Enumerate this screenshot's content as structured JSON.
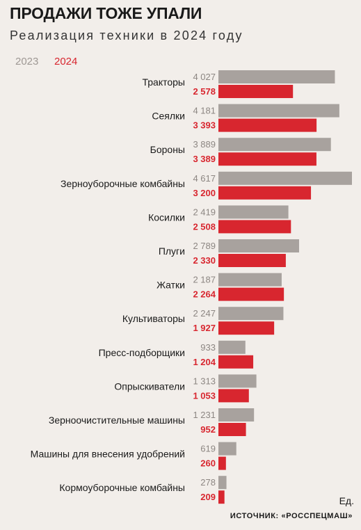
{
  "chart_data": {
    "type": "bar",
    "orientation": "horizontal",
    "title": "ПРОДАЖИ ТОЖЕ УПАЛИ",
    "subtitle": "Реализация техники в 2024 году",
    "unit_label": "Ед.",
    "source": "ИСТОЧНИК: «РОССПЕЦМАШ»",
    "categories": [
      "Тракторы",
      "Сеялки",
      "Бороны",
      "Зерноуборочные комбайны",
      "Косилки",
      "Плуги",
      "Жатки",
      "Культиваторы",
      "Пресс-подборщики",
      "Опрыскиватели",
      "Зерноочистительные машины",
      "Машины для внесения удобрений",
      "Кормоуборочные комбайны"
    ],
    "series": [
      {
        "name": "2023",
        "color": "#a8a29e",
        "values": [
          4027,
          4181,
          3889,
          4617,
          2419,
          2789,
          2187,
          2247,
          933,
          1313,
          1231,
          619,
          278
        ],
        "value_labels": [
          "4 027",
          "4 181",
          "3 889",
          "4 617",
          "2 419",
          "2 789",
          "2 187",
          "2 247",
          "933",
          "1 313",
          "1 231",
          "619",
          "278"
        ]
      },
      {
        "name": "2024",
        "color": "#d8262f",
        "values": [
          2578,
          3393,
          3389,
          3200,
          2508,
          2330,
          2264,
          1927,
          1204,
          1053,
          952,
          260,
          209
        ],
        "value_labels": [
          "2 578",
          "3 393",
          "3 389",
          "3 200",
          "2 508",
          "2 330",
          "2 264",
          "1 927",
          "1 204",
          "1 053",
          "952",
          "260",
          "209"
        ]
      }
    ],
    "legend_placement": "top-left",
    "grid": false
  }
}
